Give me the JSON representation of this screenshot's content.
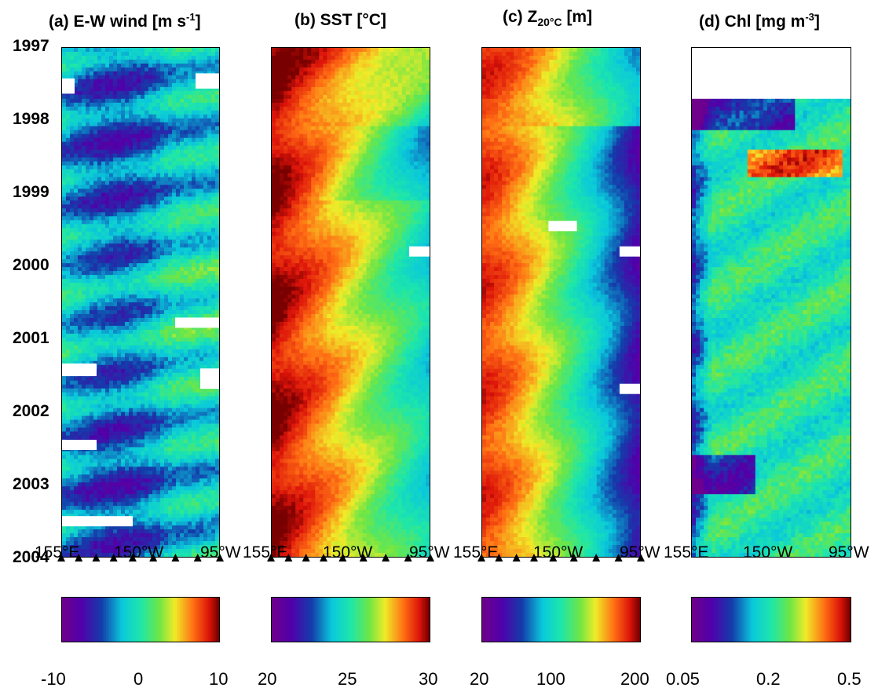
{
  "figure": {
    "years": [
      "1997",
      "1998",
      "1999",
      "2000",
      "2001",
      "2002",
      "2003",
      "2004"
    ]
  },
  "chart_data": [
    {
      "type": "heatmap",
      "title": "(a) E-W wind [m s",
      "title_sup": "-1",
      "title_end": "]",
      "x_tick_labels": [
        "155°E",
        "150°W",
        "95°W"
      ],
      "y_tick_labels": [
        "1997",
        "1998",
        "1999",
        "2000",
        "2001",
        "2002",
        "2003",
        "2004"
      ],
      "xlim": [
        "155°E",
        "95°W"
      ],
      "ylim": [
        1997,
        2004
      ],
      "colorbar": {
        "min": -10,
        "max": 10,
        "tick_labels": [
          "-10",
          "0",
          "10"
        ]
      },
      "colormap": "purple-blue-cyan-green-yellow-red",
      "field_values_by_lon_fraction": [
        {
          "lon_frac": 0.0,
          "typical_value": -2
        },
        {
          "lon_frac": 0.3,
          "typical_value": -6
        },
        {
          "lon_frac": 0.6,
          "typical_value": -6
        },
        {
          "lon_frac": 1.0,
          "typical_value": -3
        }
      ]
    },
    {
      "type": "heatmap",
      "title": "(b) SST [°C]",
      "x_tick_labels": [
        "155°E",
        "150°W",
        "95°W"
      ],
      "y_tick_labels": [
        "1997",
        "1998",
        "1999",
        "2000",
        "2001",
        "2002",
        "2003",
        "2004"
      ],
      "xlim": [
        "155°E",
        "95°W"
      ],
      "ylim": [
        1997,
        2004
      ],
      "colorbar": {
        "min": 20,
        "max": 30,
        "tick_labels": [
          "20",
          "25",
          "30"
        ]
      },
      "colormap": "purple-blue-cyan-green-yellow-red",
      "field_values_by_lon_fraction": [
        {
          "lon_frac": 0.0,
          "typical_value": 29.5
        },
        {
          "lon_frac": 0.35,
          "typical_value": 27
        },
        {
          "lon_frac": 0.7,
          "typical_value": 25
        },
        {
          "lon_frac": 1.0,
          "typical_value": 24
        }
      ]
    },
    {
      "type": "heatmap",
      "title": "(c) Z",
      "title_sub": "20°C",
      "title_end": " [m]",
      "x_tick_labels": [
        "155°E",
        "150°W",
        "95°W"
      ],
      "y_tick_labels": [
        "1997",
        "1998",
        "1999",
        "2000",
        "2001",
        "2002",
        "2003",
        "2004"
      ],
      "xlim": [
        "155°E",
        "95°W"
      ],
      "ylim": [
        1997,
        2004
      ],
      "colorbar": {
        "min": 20,
        "max": 200,
        "tick_labels": [
          "20",
          "100",
          "200"
        ]
      },
      "colormap": "purple-blue-cyan-green-yellow-red",
      "field_values_by_lon_fraction": [
        {
          "lon_frac": 0.0,
          "typical_value": 180
        },
        {
          "lon_frac": 0.35,
          "typical_value": 150
        },
        {
          "lon_frac": 0.65,
          "typical_value": 90
        },
        {
          "lon_frac": 1.0,
          "typical_value": 30
        }
      ]
    },
    {
      "type": "heatmap",
      "title": "(d) Chl [mg m",
      "title_sup": "-3",
      "title_end": "]",
      "x_tick_labels": [
        "155°E",
        "150°W",
        "95°W"
      ],
      "y_tick_labels": [
        "1997",
        "1998",
        "1999",
        "2000",
        "2001",
        "2002",
        "2003",
        "2004"
      ],
      "xlim": [
        "155°E",
        "95°W"
      ],
      "ylim": [
        1997,
        2004
      ],
      "colorbar": {
        "min": 0.05,
        "max": 0.5,
        "tick_labels": [
          "0.05",
          "0.2",
          "0.5"
        ]
      },
      "colormap": "purple-blue-cyan-green-yellow-red",
      "field_values_by_lon_fraction": [
        {
          "lon_frac": 0.0,
          "typical_value": 0.08
        },
        {
          "lon_frac": 0.4,
          "typical_value": 0.2
        },
        {
          "lon_frac": 1.0,
          "typical_value": 0.22
        }
      ]
    }
  ]
}
